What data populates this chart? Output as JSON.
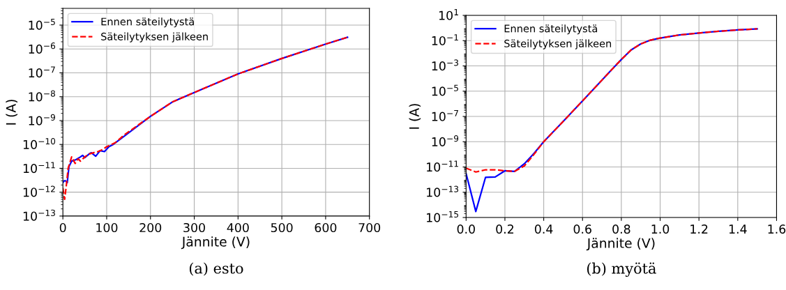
{
  "chart_data": [
    {
      "type": "line",
      "xlabel": "Jännite (V)",
      "ylabel": "I (A)",
      "log": "y",
      "grid": true,
      "legend": "top left",
      "xlim": [
        0,
        700
      ],
      "xticks": [
        0,
        100,
        200,
        300,
        400,
        500,
        600,
        700
      ],
      "ylim": [
        1e-13,
        5e-05
      ],
      "yticks": [
        {
          "value": 1e-13,
          "label": "10$^{−13}$"
        },
        {
          "value": 1e-12,
          "label": "10$^{−12}$"
        },
        {
          "value": 1e-11,
          "label": "10$^{−11}$"
        },
        {
          "value": 1e-10,
          "label": "10$^{−10}$"
        },
        {
          "value": 1e-09,
          "label": "10$^{−9}$"
        },
        {
          "value": 1e-08,
          "label": "10$^{−8}$"
        },
        {
          "value": 1e-07,
          "label": "10$^{−7}$"
        },
        {
          "value": 1e-06,
          "label": "10$^{−6}$"
        },
        {
          "value": 1e-05,
          "label": "10$^{−5}$"
        }
      ],
      "annotations": [
        "(a) esto"
      ],
      "series": [
        {
          "name": "Ennen säteilytystä",
          "color": "#0000ff",
          "line_style": "solid",
          "x": [
            0,
            3,
            6,
            10,
            14,
            20,
            30,
            40,
            45,
            50,
            60,
            65,
            75,
            85,
            95,
            105,
            115,
            140,
            200,
            250,
            300,
            400,
            500,
            600,
            650
          ],
          "values": [
            2.5e-12,
            3e-12,
            3e-12,
            2.5e-12,
            1.2e-11,
            2e-11,
            2.3e-11,
            3e-11,
            3.5e-11,
            2.8e-11,
            4e-11,
            4.5e-11,
            3.2e-11,
            5.5e-11,
            5e-11,
            8e-11,
            1e-10,
            2.2e-10,
            1.5e-09,
            6e-09,
            1.5e-08,
            9e-08,
            4e-07,
            1.6e-06,
            3.1e-06
          ]
        },
        {
          "name": "Säteilytyksen jälkeen",
          "color": "#ff0000",
          "line_style": "dashed",
          "x": [
            0,
            4,
            8,
            12,
            20,
            28,
            35,
            40,
            50,
            60,
            70,
            80,
            90,
            100,
            120,
            140,
            200,
            250,
            300,
            400,
            500,
            600,
            650
          ],
          "values": [
            1.5e-12,
            5e-13,
            2e-12,
            1e-11,
            3e-11,
            1.6e-11,
            2.5e-11,
            2e-11,
            3e-11,
            4e-11,
            4.5e-11,
            5e-11,
            6e-11,
            8e-11,
            1.2e-10,
            2.5e-10,
            1.5e-09,
            6e-09,
            1.5e-08,
            9e-08,
            4e-07,
            1.6e-06,
            3.1e-06
          ]
        }
      ]
    },
    {
      "type": "line",
      "xlabel": "Jännite (V)",
      "ylabel": "I (A)",
      "log": "y",
      "grid": true,
      "legend": "top left",
      "xlim": [
        0,
        1.6
      ],
      "xticks": [
        {
          "value": 0,
          "label": "0.0"
        },
        {
          "value": 0.2,
          "label": "0.2"
        },
        {
          "value": 0.4,
          "label": "0.4"
        },
        {
          "value": 0.6,
          "label": "0.6"
        },
        {
          "value": 0.8,
          "label": "0.8"
        },
        {
          "value": 1.0,
          "label": "1.0"
        },
        {
          "value": 1.2,
          "label": "1.2"
        },
        {
          "value": 1.4,
          "label": "1.4"
        },
        {
          "value": 1.6,
          "label": "1.6"
        }
      ],
      "ylim": [
        1e-15,
        10
      ],
      "yticks": [
        {
          "value": 1e-15,
          "label": "10$^{−15}$"
        },
        {
          "value": 1e-13,
          "label": "10$^{−13}$"
        },
        {
          "value": 1e-11,
          "label": "10$^{−11}$"
        },
        {
          "value": 1e-09,
          "label": "10$^{−9}$"
        },
        {
          "value": 1e-07,
          "label": "10$^{−7}$"
        },
        {
          "value": 1e-05,
          "label": "10$^{−5}$"
        },
        {
          "value": 0.001,
          "label": "10$^{−3}$"
        },
        {
          "value": 0.1,
          "label": "10$^{−1}$"
        },
        {
          "value": 10,
          "label": "10$^{1}$"
        }
      ],
      "annotations": [
        "(b) myötä"
      ],
      "series": [
        {
          "name": "Ennen säteilytystä",
          "color": "#0000ff",
          "line_style": "solid",
          "x": [
            0,
            0.05,
            0.1,
            0.15,
            0.2,
            0.25,
            0.3,
            0.35,
            0.4,
            0.5,
            0.6,
            0.7,
            0.75,
            0.8,
            0.85,
            0.9,
            0.95,
            1.0,
            1.1,
            1.2,
            1.3,
            1.4,
            1.5
          ],
          "values": [
            3e-12,
            3e-15,
            1.5e-12,
            1.6e-12,
            5e-12,
            4.5e-12,
            1.8e-11,
            1.2e-10,
            1e-09,
            4e-08,
            1.7e-06,
            7.5e-05,
            0.0005,
            0.0032,
            0.018,
            0.055,
            0.11,
            0.16,
            0.28,
            0.4,
            0.55,
            0.7,
            0.85
          ]
        },
        {
          "name": "Säteilytyksen jälkeen",
          "color": "#ff0000",
          "line_style": "dashed",
          "x": [
            0,
            0.05,
            0.1,
            0.15,
            0.2,
            0.25,
            0.3,
            0.35,
            0.4,
            0.5,
            0.6,
            0.7,
            0.75,
            0.8,
            0.85,
            0.9,
            0.95,
            1.0,
            1.1,
            1.2,
            1.3,
            1.4,
            1.5
          ],
          "values": [
            8e-12,
            4e-12,
            6e-12,
            6e-12,
            5e-12,
            4.5e-12,
            1.2e-11,
            1e-10,
            1e-09,
            4e-08,
            1.7e-06,
            7.5e-05,
            0.0005,
            0.0032,
            0.018,
            0.055,
            0.11,
            0.16,
            0.28,
            0.4,
            0.55,
            0.7,
            0.85
          ]
        }
      ]
    }
  ]
}
